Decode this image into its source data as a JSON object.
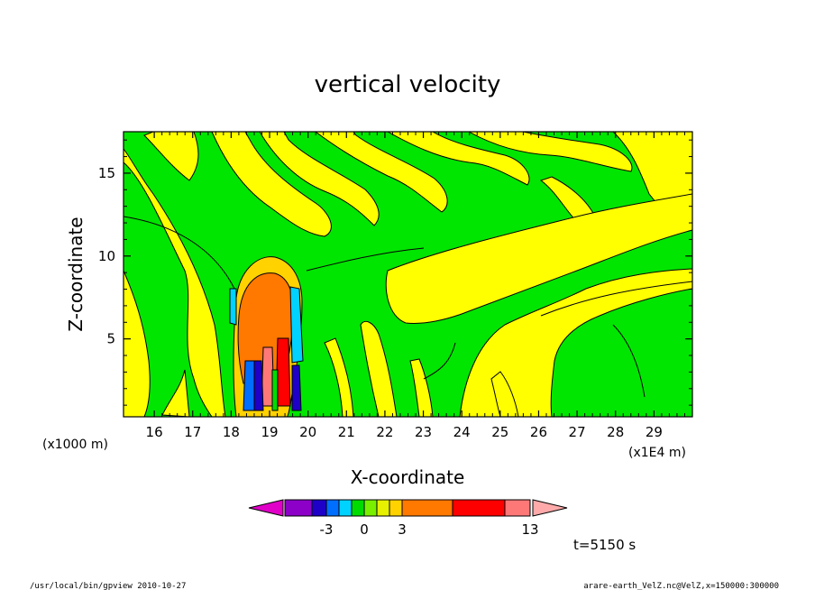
{
  "chart_data": {
    "type": "heatmap",
    "title": "vertical velocity",
    "xlabel": "X-coordinate",
    "ylabel": "Z-coordinate",
    "x_unit_left": "(x1000 m)",
    "x_unit_right": "(x1E4 m)",
    "xlim": [
      15.2,
      30.0
    ],
    "ylim": [
      0.3,
      17.5
    ],
    "x_ticks": [
      "16",
      "17",
      "18",
      "19",
      "20",
      "21",
      "22",
      "23",
      "24",
      "25",
      "26",
      "27",
      "28",
      "29"
    ],
    "y_ticks": [
      "5",
      "10",
      "15"
    ],
    "y_tick_values": [
      5,
      10,
      15
    ],
    "colorbar": {
      "labels": [
        {
          "text": "-3",
          "value": -3
        },
        {
          "text": "0",
          "value": 0
        },
        {
          "text": "3",
          "value": 3
        },
        {
          "text": "13",
          "value": 13
        }
      ],
      "colors": [
        "#e000c8",
        "#8c00c8",
        "#1e00c8",
        "#006eff",
        "#00d2ff",
        "#00dc00",
        "#78f000",
        "#e6f000",
        "#ffd200",
        "#ff7800",
        "#ff0000",
        "#ff7878",
        "#ffaaaa"
      ]
    },
    "time_label": "t=5150 s",
    "background_color": "#00e600",
    "positive_color": "#ffff00",
    "features": [
      {
        "x": 18.6,
        "z": 6.5,
        "w": 0.9,
        "h": 3.5,
        "value": 6
      },
      {
        "x": 19.6,
        "z": 6.5,
        "w": 0.2,
        "h": 2.5,
        "value": -3
      },
      {
        "x": 18.3,
        "z": 2.0,
        "w": 0.15,
        "h": 1.5,
        "value": -3
      },
      {
        "x": 19.3,
        "z": 2.0,
        "w": 0.15,
        "h": 1.5,
        "value": 9
      }
    ]
  },
  "footer": {
    "left": "/usr/local/bin/gpview  2010-10-27",
    "right": "arare-earth_VelZ.nc@VelZ,x=150000:300000"
  }
}
